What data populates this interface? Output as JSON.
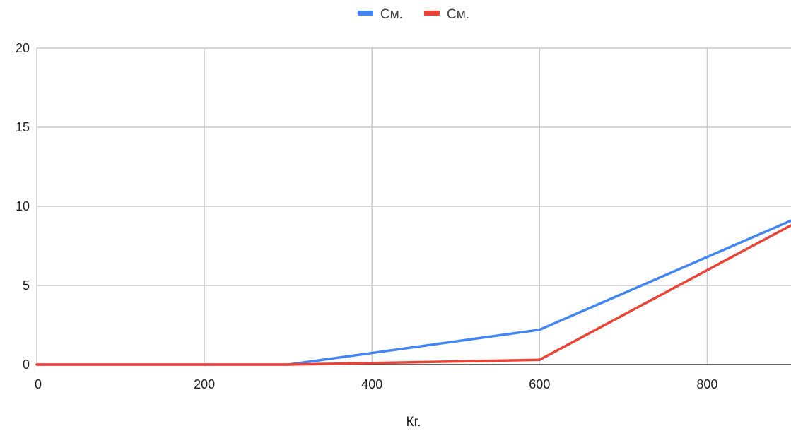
{
  "chart_data": {
    "type": "line",
    "xlabel": "Кг.",
    "ylabel": "",
    "xlim": [
      0,
      900
    ],
    "ylim": [
      0,
      20
    ],
    "x_ticks": [
      0,
      200,
      400,
      600,
      800
    ],
    "y_ticks": [
      0,
      5,
      10,
      15,
      20
    ],
    "grid": true,
    "legend_position": "top",
    "series": [
      {
        "name": "См.",
        "color": "#4285f4",
        "points": [
          [
            0,
            0
          ],
          [
            300,
            0
          ],
          [
            600,
            2.2
          ],
          [
            900,
            9.1
          ]
        ]
      },
      {
        "name": "См.",
        "color": "#ea4335",
        "points": [
          [
            0,
            0
          ],
          [
            300,
            0
          ],
          [
            600,
            0.3
          ],
          [
            900,
            8.8
          ]
        ]
      }
    ]
  }
}
